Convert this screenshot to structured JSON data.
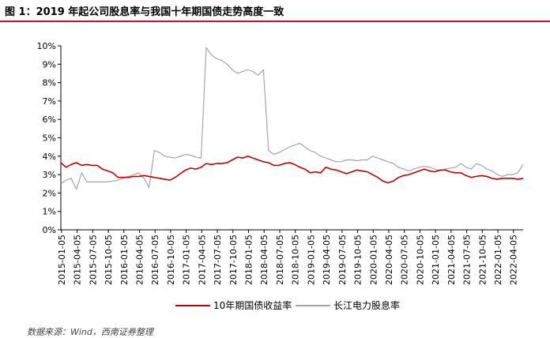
{
  "page_title": "图 1：2019 年起公司股息率与我国十年期国债走势高度一致",
  "source_note": "数据来源：Wind，西南证券整理",
  "colors": {
    "bond": "#c00000",
    "dividend": "#a6a6a6",
    "title_rule": "#c8102e",
    "axis": "#000000"
  },
  "chart_data": {
    "type": "line",
    "title": "",
    "xlabel": "",
    "ylabel": "",
    "ylim": [
      0,
      10
    ],
    "yticks": [
      "0%",
      "1%",
      "2%",
      "3%",
      "4%",
      "5%",
      "6%",
      "7%",
      "8%",
      "9%",
      "10%"
    ],
    "xlim": [
      "2015-01",
      "2022-06"
    ],
    "xticks": [
      "2015-01-05",
      "2015-04-05",
      "2015-07-05",
      "2015-10-05",
      "2016-01-05",
      "2016-04-05",
      "2016-07-05",
      "2016-10-05",
      "2017-01-05",
      "2017-04-05",
      "2017-07-05",
      "2017-10-05",
      "2018-01-05",
      "2018-04-05",
      "2018-07-05",
      "2018-10-05",
      "2019-01-05",
      "2019-04-05",
      "2019-07-05",
      "2019-10-05",
      "2020-01-05",
      "2020-04-05",
      "2020-07-05",
      "2020-10-05",
      "2021-01-05",
      "2021-04-05",
      "2021-07-05",
      "2021-10-05",
      "2022-01-05",
      "2022-04-05"
    ],
    "legend_position": "bottom",
    "grid": false,
    "series": [
      {
        "name": "10年期国债收益率",
        "color": "#c00000",
        "points": [
          [
            "2015-01",
            3.65
          ],
          [
            "2015-02",
            3.4
          ],
          [
            "2015-03",
            3.55
          ],
          [
            "2015-04",
            3.65
          ],
          [
            "2015-05",
            3.5
          ],
          [
            "2015-06",
            3.55
          ],
          [
            "2015-07",
            3.5
          ],
          [
            "2015-08",
            3.5
          ],
          [
            "2015-09",
            3.3
          ],
          [
            "2015-10",
            3.2
          ],
          [
            "2015-11",
            3.1
          ],
          [
            "2015-12",
            2.85
          ],
          [
            "2016-01",
            2.85
          ],
          [
            "2016-02",
            2.85
          ],
          [
            "2016-03",
            2.9
          ],
          [
            "2016-04",
            2.9
          ],
          [
            "2016-05",
            2.95
          ],
          [
            "2016-06",
            2.9
          ],
          [
            "2016-07",
            2.85
          ],
          [
            "2016-08",
            2.8
          ],
          [
            "2016-09",
            2.75
          ],
          [
            "2016-10",
            2.7
          ],
          [
            "2016-11",
            2.85
          ],
          [
            "2016-12",
            3.05
          ],
          [
            "2017-01",
            3.25
          ],
          [
            "2017-02",
            3.35
          ],
          [
            "2017-03",
            3.3
          ],
          [
            "2017-04",
            3.4
          ],
          [
            "2017-05",
            3.6
          ],
          [
            "2017-06",
            3.55
          ],
          [
            "2017-07",
            3.6
          ],
          [
            "2017-08",
            3.6
          ],
          [
            "2017-09",
            3.65
          ],
          [
            "2017-10",
            3.8
          ],
          [
            "2017-11",
            3.95
          ],
          [
            "2017-12",
            3.9
          ],
          [
            "2018-01",
            4.0
          ],
          [
            "2018-02",
            3.9
          ],
          [
            "2018-03",
            3.8
          ],
          [
            "2018-04",
            3.7
          ],
          [
            "2018-05",
            3.65
          ],
          [
            "2018-06",
            3.5
          ],
          [
            "2018-07",
            3.5
          ],
          [
            "2018-08",
            3.6
          ],
          [
            "2018-09",
            3.65
          ],
          [
            "2018-10",
            3.55
          ],
          [
            "2018-11",
            3.4
          ],
          [
            "2018-12",
            3.3
          ],
          [
            "2019-01",
            3.1
          ],
          [
            "2019-02",
            3.15
          ],
          [
            "2019-03",
            3.1
          ],
          [
            "2019-04",
            3.4
          ],
          [
            "2019-05",
            3.3
          ],
          [
            "2019-06",
            3.25
          ],
          [
            "2019-07",
            3.15
          ],
          [
            "2019-08",
            3.05
          ],
          [
            "2019-09",
            3.15
          ],
          [
            "2019-10",
            3.25
          ],
          [
            "2019-11",
            3.2
          ],
          [
            "2019-12",
            3.15
          ],
          [
            "2020-01",
            3.0
          ],
          [
            "2020-02",
            2.85
          ],
          [
            "2020-03",
            2.65
          ],
          [
            "2020-04",
            2.55
          ],
          [
            "2020-05",
            2.65
          ],
          [
            "2020-06",
            2.85
          ],
          [
            "2020-07",
            2.95
          ],
          [
            "2020-08",
            3.0
          ],
          [
            "2020-09",
            3.1
          ],
          [
            "2020-10",
            3.2
          ],
          [
            "2020-11",
            3.3
          ],
          [
            "2020-12",
            3.2
          ],
          [
            "2021-01",
            3.15
          ],
          [
            "2021-02",
            3.25
          ],
          [
            "2021-03",
            3.25
          ],
          [
            "2021-04",
            3.15
          ],
          [
            "2021-05",
            3.1
          ],
          [
            "2021-06",
            3.1
          ],
          [
            "2021-07",
            2.95
          ],
          [
            "2021-08",
            2.85
          ],
          [
            "2021-09",
            2.9
          ],
          [
            "2021-10",
            2.95
          ],
          [
            "2021-11",
            2.9
          ],
          [
            "2021-12",
            2.8
          ],
          [
            "2022-01",
            2.75
          ],
          [
            "2022-02",
            2.8
          ],
          [
            "2022-03",
            2.8
          ],
          [
            "2022-04",
            2.8
          ],
          [
            "2022-05",
            2.75
          ],
          [
            "2022-06",
            2.8
          ]
        ]
      },
      {
        "name": "长江电力股息率",
        "color": "#a6a6a6",
        "points": [
          [
            "2015-01",
            2.5
          ],
          [
            "2015-02",
            2.7
          ],
          [
            "2015-03",
            2.8
          ],
          [
            "2015-04",
            2.2
          ],
          [
            "2015-05",
            3.1
          ],
          [
            "2015-06",
            2.6
          ],
          [
            "2015-07",
            2.6
          ],
          [
            "2015-08",
            2.6
          ],
          [
            "2015-09",
            2.6
          ],
          [
            "2015-10",
            2.6
          ],
          [
            "2015-11",
            2.65
          ],
          [
            "2015-12",
            2.7
          ],
          [
            "2016-01",
            2.8
          ],
          [
            "2016-02",
            2.9
          ],
          [
            "2016-03",
            3.0
          ],
          [
            "2016-04",
            3.1
          ],
          [
            "2016-05",
            2.8
          ],
          [
            "2016-06",
            2.3
          ],
          [
            "2016-07",
            4.3
          ],
          [
            "2016-08",
            4.2
          ],
          [
            "2016-09",
            4.0
          ],
          [
            "2016-10",
            3.95
          ],
          [
            "2016-11",
            3.9
          ],
          [
            "2016-12",
            4.0
          ],
          [
            "2017-01",
            4.1
          ],
          [
            "2017-02",
            4.05
          ],
          [
            "2017-03",
            3.95
          ],
          [
            "2017-04",
            3.9
          ],
          [
            "2017-05",
            9.9
          ],
          [
            "2017-06",
            9.5
          ],
          [
            "2017-07",
            9.3
          ],
          [
            "2017-08",
            9.2
          ],
          [
            "2017-09",
            9.0
          ],
          [
            "2017-10",
            8.7
          ],
          [
            "2017-11",
            8.5
          ],
          [
            "2017-12",
            8.6
          ],
          [
            "2018-01",
            8.7
          ],
          [
            "2018-02",
            8.6
          ],
          [
            "2018-03",
            8.4
          ],
          [
            "2018-04",
            8.7
          ],
          [
            "2018-05",
            4.3
          ],
          [
            "2018-06",
            4.1
          ],
          [
            "2018-07",
            4.2
          ],
          [
            "2018-08",
            4.35
          ],
          [
            "2018-09",
            4.5
          ],
          [
            "2018-10",
            4.6
          ],
          [
            "2018-11",
            4.7
          ],
          [
            "2018-12",
            4.5
          ],
          [
            "2019-01",
            4.3
          ],
          [
            "2019-02",
            4.2
          ],
          [
            "2019-03",
            4.0
          ],
          [
            "2019-04",
            3.9
          ],
          [
            "2019-05",
            3.8
          ],
          [
            "2019-06",
            3.7
          ],
          [
            "2019-07",
            3.7
          ],
          [
            "2019-08",
            3.8
          ],
          [
            "2019-09",
            3.8
          ],
          [
            "2019-10",
            3.75
          ],
          [
            "2019-11",
            3.8
          ],
          [
            "2019-12",
            3.8
          ],
          [
            "2020-01",
            4.0
          ],
          [
            "2020-02",
            3.9
          ],
          [
            "2020-03",
            3.8
          ],
          [
            "2020-04",
            3.7
          ],
          [
            "2020-05",
            3.6
          ],
          [
            "2020-06",
            3.4
          ],
          [
            "2020-07",
            3.3
          ],
          [
            "2020-08",
            3.2
          ],
          [
            "2020-09",
            3.3
          ],
          [
            "2020-10",
            3.4
          ],
          [
            "2020-11",
            3.45
          ],
          [
            "2020-12",
            3.4
          ],
          [
            "2021-01",
            3.3
          ],
          [
            "2021-02",
            3.2
          ],
          [
            "2021-03",
            3.3
          ],
          [
            "2021-04",
            3.35
          ],
          [
            "2021-05",
            3.4
          ],
          [
            "2021-06",
            3.6
          ],
          [
            "2021-07",
            3.4
          ],
          [
            "2021-08",
            3.3
          ],
          [
            "2021-09",
            3.6
          ],
          [
            "2021-10",
            3.5
          ],
          [
            "2021-11",
            3.3
          ],
          [
            "2021-12",
            3.2
          ],
          [
            "2022-01",
            3.0
          ],
          [
            "2022-02",
            2.9
          ],
          [
            "2022-03",
            3.0
          ],
          [
            "2022-04",
            3.0
          ],
          [
            "2022-05",
            3.1
          ],
          [
            "2022-06",
            3.55
          ]
        ]
      }
    ]
  }
}
